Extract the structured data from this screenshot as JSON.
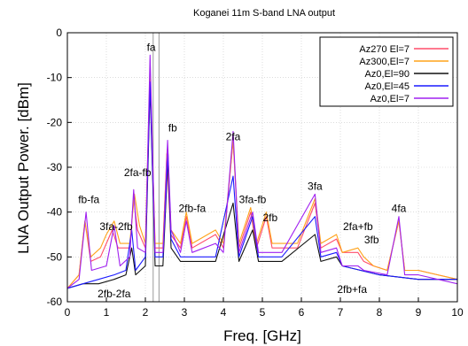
{
  "chart_data": {
    "type": "line",
    "title": "Koganei 11m S-band LNA output",
    "xlabel": "Freq. [GHz]",
    "ylabel": "LNA Output Power. [dBm]",
    "xlim": [
      0,
      10
    ],
    "ylim": [
      -60,
      0
    ],
    "xticks": [
      "0",
      "1",
      "2",
      "3",
      "4",
      "5",
      "6",
      "7",
      "8",
      "9",
      "10"
    ],
    "yticks": [
      "0",
      "-10",
      "-20",
      "-30",
      "-40",
      "-50",
      "-60"
    ],
    "grid": true,
    "legend_position": "top-right",
    "markers_x": [
      2.2,
      2.35
    ],
    "series": [
      {
        "name": "Az270 El=7",
        "color": "#ff4d6a",
        "points": [
          [
            0,
            -57
          ],
          [
            0.3,
            -54
          ],
          [
            0.45,
            -42
          ],
          [
            0.6,
            -51
          ],
          [
            0.85,
            -50
          ],
          [
            1.0,
            -47
          ],
          [
            1.15,
            -44
          ],
          [
            1.3,
            -48
          ],
          [
            1.6,
            -48
          ],
          [
            1.7,
            -37
          ],
          [
            1.8,
            -44
          ],
          [
            2.0,
            -48
          ],
          [
            2.12,
            -9
          ],
          [
            2.25,
            -48
          ],
          [
            2.45,
            -48
          ],
          [
            2.55,
            -27
          ],
          [
            2.65,
            -45
          ],
          [
            2.9,
            -48
          ],
          [
            3.05,
            -41
          ],
          [
            3.2,
            -48
          ],
          [
            3.8,
            -45
          ],
          [
            4.0,
            -48
          ],
          [
            4.25,
            -24
          ],
          [
            4.4,
            -48
          ],
          [
            4.7,
            -40
          ],
          [
            4.85,
            -48
          ],
          [
            5.1,
            -41
          ],
          [
            5.25,
            -48
          ],
          [
            5.9,
            -48
          ],
          [
            6.35,
            -38
          ],
          [
            6.5,
            -48
          ],
          [
            6.9,
            -46
          ],
          [
            7.05,
            -49
          ],
          [
            7.45,
            -49
          ],
          [
            7.6,
            -51
          ],
          [
            7.85,
            -52
          ],
          [
            8.2,
            -53
          ],
          [
            8.5,
            -42
          ],
          [
            8.65,
            -53
          ],
          [
            9.0,
            -53
          ],
          [
            9.5,
            -54
          ],
          [
            10,
            -55
          ]
        ]
      },
      {
        "name": "Az300,El=7",
        "color": "#ffa31a",
        "points": [
          [
            0,
            -57
          ],
          [
            0.3,
            -54
          ],
          [
            0.45,
            -42
          ],
          [
            0.6,
            -50
          ],
          [
            0.85,
            -48
          ],
          [
            1.0,
            -45
          ],
          [
            1.2,
            -42
          ],
          [
            1.35,
            -47
          ],
          [
            1.6,
            -47
          ],
          [
            1.72,
            -36
          ],
          [
            1.85,
            -43
          ],
          [
            2.0,
            -47
          ],
          [
            2.12,
            -8
          ],
          [
            2.25,
            -47
          ],
          [
            2.45,
            -47
          ],
          [
            2.56,
            -26
          ],
          [
            2.66,
            -44
          ],
          [
            2.9,
            -47
          ],
          [
            3.05,
            -40
          ],
          [
            3.2,
            -47
          ],
          [
            3.8,
            -44
          ],
          [
            4.0,
            -47
          ],
          [
            4.25,
            -24
          ],
          [
            4.4,
            -47
          ],
          [
            4.7,
            -39
          ],
          [
            4.85,
            -47
          ],
          [
            5.1,
            -40
          ],
          [
            5.25,
            -47
          ],
          [
            5.9,
            -47
          ],
          [
            6.35,
            -37
          ],
          [
            6.5,
            -47
          ],
          [
            6.9,
            -45
          ],
          [
            7.05,
            -49
          ],
          [
            7.45,
            -48
          ],
          [
            7.6,
            -50
          ],
          [
            7.85,
            -52
          ],
          [
            8.2,
            -53
          ],
          [
            8.5,
            -42
          ],
          [
            8.65,
            -53
          ],
          [
            9.0,
            -53
          ],
          [
            9.5,
            -54
          ],
          [
            10,
            -55
          ]
        ]
      },
      {
        "name": "Az0,El=90",
        "color": "#111111",
        "points": [
          [
            0,
            -57
          ],
          [
            0.4,
            -56
          ],
          [
            0.8,
            -56
          ],
          [
            1.2,
            -55
          ],
          [
            1.5,
            -54
          ],
          [
            1.65,
            -48
          ],
          [
            1.75,
            -54
          ],
          [
            2.0,
            -52
          ],
          [
            2.12,
            -12
          ],
          [
            2.25,
            -52
          ],
          [
            2.45,
            -52
          ],
          [
            2.58,
            -28
          ],
          [
            2.66,
            -48
          ],
          [
            2.9,
            -51
          ],
          [
            3.2,
            -51
          ],
          [
            3.8,
            -51
          ],
          [
            4.25,
            -38
          ],
          [
            4.4,
            -51
          ],
          [
            4.75,
            -44
          ],
          [
            4.9,
            -51
          ],
          [
            5.5,
            -51
          ],
          [
            6.35,
            -45
          ],
          [
            6.5,
            -51
          ],
          [
            6.9,
            -50
          ],
          [
            7.05,
            -52
          ],
          [
            8.0,
            -54
          ],
          [
            9.0,
            -55
          ],
          [
            10,
            -55
          ]
        ]
      },
      {
        "name": "Az0,El=45",
        "color": "#1a1aff",
        "points": [
          [
            0,
            -57
          ],
          [
            0.4,
            -56
          ],
          [
            0.8,
            -55
          ],
          [
            1.2,
            -54
          ],
          [
            1.5,
            -53
          ],
          [
            1.65,
            -44
          ],
          [
            1.75,
            -53
          ],
          [
            2.0,
            -50
          ],
          [
            2.12,
            -11
          ],
          [
            2.25,
            -50
          ],
          [
            2.45,
            -50
          ],
          [
            2.58,
            -27
          ],
          [
            2.66,
            -46
          ],
          [
            2.9,
            -50
          ],
          [
            3.2,
            -50
          ],
          [
            3.8,
            -50
          ],
          [
            4.25,
            -32
          ],
          [
            4.4,
            -50
          ],
          [
            4.75,
            -41
          ],
          [
            4.9,
            -50
          ],
          [
            5.5,
            -50
          ],
          [
            6.35,
            -41
          ],
          [
            6.5,
            -50
          ],
          [
            6.9,
            -49
          ],
          [
            7.05,
            -52
          ],
          [
            8.0,
            -54
          ],
          [
            9.0,
            -55
          ],
          [
            10,
            -55
          ]
        ]
      },
      {
        "name": "Az0,El=7",
        "color": "#a020f0",
        "points": [
          [
            0,
            -57
          ],
          [
            0.3,
            -55
          ],
          [
            0.48,
            -40
          ],
          [
            0.62,
            -53
          ],
          [
            1.0,
            -52
          ],
          [
            1.2,
            -43
          ],
          [
            1.35,
            -52
          ],
          [
            1.6,
            -50
          ],
          [
            1.7,
            -35
          ],
          [
            1.8,
            -48
          ],
          [
            2.0,
            -49
          ],
          [
            2.12,
            -5
          ],
          [
            2.25,
            -49
          ],
          [
            2.45,
            -49
          ],
          [
            2.57,
            -24
          ],
          [
            2.66,
            -44
          ],
          [
            2.9,
            -49
          ],
          [
            3.05,
            -42
          ],
          [
            3.2,
            -49
          ],
          [
            3.8,
            -47
          ],
          [
            4.0,
            -49
          ],
          [
            4.25,
            -22
          ],
          [
            4.4,
            -49
          ],
          [
            4.75,
            -40
          ],
          [
            4.9,
            -49
          ],
          [
            5.5,
            -49
          ],
          [
            6.35,
            -36
          ],
          [
            6.5,
            -49
          ],
          [
            6.9,
            -48
          ],
          [
            7.05,
            -52
          ],
          [
            7.45,
            -52
          ],
          [
            7.6,
            -53
          ],
          [
            8.2,
            -54
          ],
          [
            8.5,
            -41
          ],
          [
            8.65,
            -54
          ],
          [
            9.0,
            -54
          ],
          [
            9.5,
            -55
          ],
          [
            10,
            -56
          ]
        ]
      }
    ],
    "annotations": [
      {
        "text": "fa",
        "x": 2.15,
        "y": -4
      },
      {
        "text": "fb",
        "x": 2.7,
        "y": -22
      },
      {
        "text": "2fa-fb",
        "x": 1.8,
        "y": -32
      },
      {
        "text": "fb-fa",
        "x": 0.55,
        "y": -38
      },
      {
        "text": "3fa-2fb",
        "x": 1.25,
        "y": -44
      },
      {
        "text": "2fb-fa",
        "x": 3.2,
        "y": -40
      },
      {
        "text": "2fa",
        "x": 4.25,
        "y": -24
      },
      {
        "text": "3fa-fb",
        "x": 4.75,
        "y": -38
      },
      {
        "text": "2fb",
        "x": 5.2,
        "y": -42
      },
      {
        "text": "3fa",
        "x": 6.35,
        "y": -35
      },
      {
        "text": "2fa+fb",
        "x": 7.45,
        "y": -44
      },
      {
        "text": "3fb",
        "x": 7.8,
        "y": -47
      },
      {
        "text": "4fa",
        "x": 8.5,
        "y": -40
      },
      {
        "text": "2fb-2fa",
        "x": 1.2,
        "y": -59
      },
      {
        "text": "2fb+fa",
        "x": 7.3,
        "y": -58
      }
    ]
  }
}
